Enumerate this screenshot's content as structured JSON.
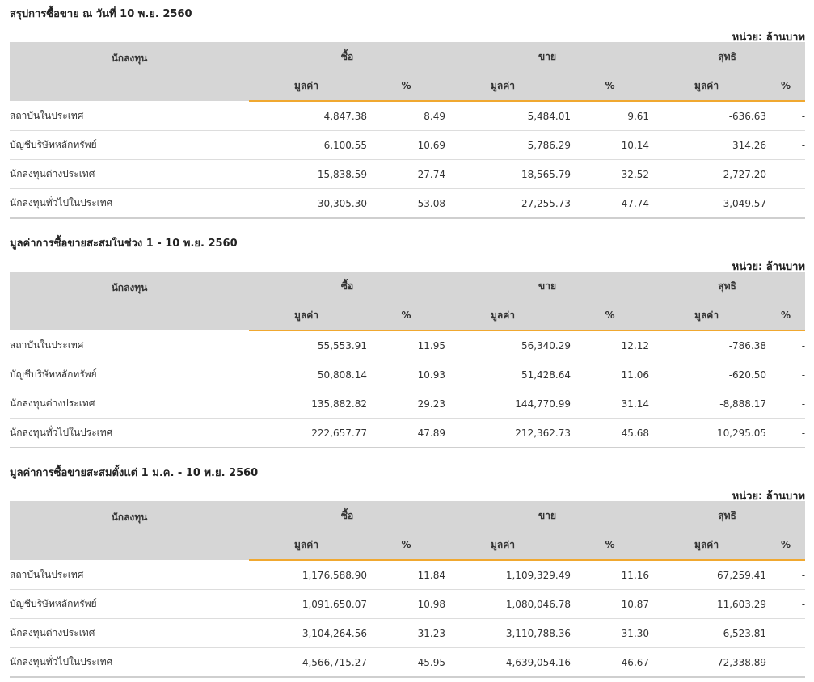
{
  "unit_label": "หน่วย: ล้านบาท",
  "headers": {
    "investor": "นักลงทุน",
    "buy": "ซื้อ",
    "sell": "ขาย",
    "net": "สุทธิ",
    "value": "มูลค่า",
    "pct": "%"
  },
  "sections": [
    {
      "title": "สรุปการซื้อขาย ณ วันที่ 10 พ.ย. 2560",
      "rows": [
        {
          "name": "สถาบันในประเทศ",
          "buy_value": "4,847.38",
          "buy_pct": "8.49",
          "sell_value": "5,484.01",
          "sell_pct": "9.61",
          "net_value": "-636.63",
          "net_pct": "-",
          "net_sign": "neg"
        },
        {
          "name": "บัญชีบริษัทหลักทรัพย์",
          "buy_value": "6,100.55",
          "buy_pct": "10.69",
          "sell_value": "5,786.29",
          "sell_pct": "10.14",
          "net_value": "314.26",
          "net_pct": "-",
          "net_sign": "pos"
        },
        {
          "name": "นักลงทุนต่างประเทศ",
          "buy_value": "15,838.59",
          "buy_pct": "27.74",
          "sell_value": "18,565.79",
          "sell_pct": "32.52",
          "net_value": "-2,727.20",
          "net_pct": "-",
          "net_sign": "neg"
        },
        {
          "name": "นักลงทุนทั่วไปในประเทศ",
          "buy_value": "30,305.30",
          "buy_pct": "53.08",
          "sell_value": "27,255.73",
          "sell_pct": "47.74",
          "net_value": "3,049.57",
          "net_pct": "-",
          "net_sign": "pos"
        }
      ]
    },
    {
      "title": "มูลค่าการซื้อขายสะสมในช่วง 1 - 10 พ.ย. 2560",
      "rows": [
        {
          "name": "สถาบันในประเทศ",
          "buy_value": "55,553.91",
          "buy_pct": "11.95",
          "sell_value": "56,340.29",
          "sell_pct": "12.12",
          "net_value": "-786.38",
          "net_pct": "-",
          "net_sign": "neg"
        },
        {
          "name": "บัญชีบริษัทหลักทรัพย์",
          "buy_value": "50,808.14",
          "buy_pct": "10.93",
          "sell_value": "51,428.64",
          "sell_pct": "11.06",
          "net_value": "-620.50",
          "net_pct": "-",
          "net_sign": "neg"
        },
        {
          "name": "นักลงทุนต่างประเทศ",
          "buy_value": "135,882.82",
          "buy_pct": "29.23",
          "sell_value": "144,770.99",
          "sell_pct": "31.14",
          "net_value": "-8,888.17",
          "net_pct": "-",
          "net_sign": "neg"
        },
        {
          "name": "นักลงทุนทั่วไปในประเทศ",
          "buy_value": "222,657.77",
          "buy_pct": "47.89",
          "sell_value": "212,362.73",
          "sell_pct": "45.68",
          "net_value": "10,295.05",
          "net_pct": "-",
          "net_sign": "pos"
        }
      ]
    },
    {
      "title": "มูลค่าการซื้อขายสะสมตั้งแต่ 1 ม.ค. - 10 พ.ย. 2560",
      "rows": [
        {
          "name": "สถาบันในประเทศ",
          "buy_value": "1,176,588.90",
          "buy_pct": "11.84",
          "sell_value": "1,109,329.49",
          "sell_pct": "11.16",
          "net_value": "67,259.41",
          "net_pct": "-",
          "net_sign": "pos"
        },
        {
          "name": "บัญชีบริษัทหลักทรัพย์",
          "buy_value": "1,091,650.07",
          "buy_pct": "10.98",
          "sell_value": "1,080,046.78",
          "sell_pct": "10.87",
          "net_value": "11,603.29",
          "net_pct": "-",
          "net_sign": "pos"
        },
        {
          "name": "นักลงทุนต่างประเทศ",
          "buy_value": "3,104,264.56",
          "buy_pct": "31.23",
          "sell_value": "3,110,788.36",
          "sell_pct": "31.30",
          "net_value": "-6,523.81",
          "net_pct": "-",
          "net_sign": "neg"
        },
        {
          "name": "นักลงทุนทั่วไปในประเทศ",
          "buy_value": "4,566,715.27",
          "buy_pct": "45.95",
          "sell_value": "4,639,054.16",
          "sell_pct": "46.67",
          "net_value": "-72,338.89",
          "net_pct": "-",
          "net_sign": "neg"
        }
      ]
    }
  ]
}
